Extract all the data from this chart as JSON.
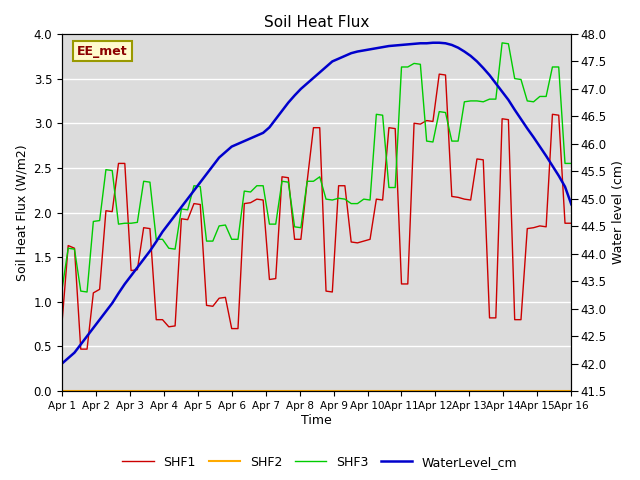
{
  "title": "Soil Heat Flux",
  "xlabel": "Time",
  "ylabel_left": "Soil Heat Flux (W/m2)",
  "ylabel_right": "Water level (cm)",
  "ylim_left": [
    0.0,
    4.0
  ],
  "ylim_right": [
    41.5,
    48.0
  ],
  "background_color": "#dcdcdc",
  "legend_label": "EE_met",
  "x_ticks": [
    "Apr 1",
    "Apr 2",
    "Apr 3",
    "Apr 4",
    "Apr 5",
    "Apr 6",
    "Apr 7",
    "Apr 8",
    "Apr 9",
    "Apr 10",
    "Apr 11",
    "Apr 12",
    "Apr 13",
    "Apr 14",
    "Apr 15",
    "Apr 16"
  ],
  "shf1_color": "#cc0000",
  "shf2_color": "#ffaa00",
  "shf3_color": "#00cc00",
  "water_color": "#0000cc",
  "shf1": [
    0.75,
    1.63,
    1.6,
    0.47,
    0.47,
    1.1,
    1.14,
    2.02,
    2.01,
    2.55,
    2.55,
    1.35,
    1.36,
    1.83,
    1.82,
    0.8,
    0.8,
    0.72,
    0.73,
    1.93,
    1.92,
    2.1,
    2.09,
    0.96,
    0.95,
    1.04,
    1.05,
    0.7,
    0.7,
    2.1,
    2.11,
    2.15,
    2.14,
    1.25,
    1.26,
    2.4,
    2.39,
    1.7,
    1.7,
    2.35,
    2.95,
    2.95,
    1.12,
    1.11,
    2.3,
    2.3,
    1.67,
    1.66,
    1.68,
    1.7,
    2.15,
    2.14,
    2.95,
    2.94,
    1.2,
    1.2,
    3.0,
    2.99,
    3.03,
    3.02,
    3.55,
    3.54,
    2.18,
    2.17,
    2.15,
    2.14,
    2.6,
    2.59,
    0.82,
    0.82,
    3.05,
    3.04,
    0.8,
    0.8,
    1.82,
    1.83,
    1.85,
    1.84,
    3.1,
    3.09,
    1.88,
    1.88
  ],
  "shf3": [
    1.13,
    1.6,
    1.59,
    1.12,
    1.11,
    1.9,
    1.91,
    2.48,
    2.47,
    1.87,
    1.88,
    1.88,
    1.89,
    2.35,
    2.34,
    1.7,
    1.7,
    1.6,
    1.59,
    2.04,
    2.03,
    2.3,
    2.29,
    1.68,
    1.68,
    1.85,
    1.86,
    1.7,
    1.7,
    2.24,
    2.23,
    2.3,
    2.3,
    1.87,
    1.87,
    2.35,
    2.34,
    1.84,
    1.83,
    2.35,
    2.35,
    2.4,
    2.15,
    2.14,
    2.16,
    2.15,
    2.1,
    2.1,
    2.15,
    2.14,
    3.1,
    3.09,
    2.28,
    2.28,
    3.63,
    3.63,
    3.67,
    3.66,
    2.8,
    2.79,
    3.13,
    3.12,
    2.8,
    2.8,
    3.24,
    3.25,
    3.25,
    3.24,
    3.27,
    3.27,
    3.9,
    3.89,
    3.5,
    3.49,
    3.25,
    3.24,
    3.3,
    3.3,
    3.63,
    3.63,
    2.55,
    2.55
  ],
  "shf2": [
    0.0,
    0.0,
    0.0,
    0.0,
    0.0,
    0.0,
    0.0,
    0.0,
    0.0,
    0.0,
    0.0,
    0.0,
    0.0,
    0.0,
    0.0,
    0.0,
    0.0,
    0.0,
    0.0,
    0.0,
    0.0,
    0.0,
    0.0,
    0.0,
    0.0,
    0.0,
    0.0,
    0.0,
    0.0,
    0.0,
    0.0,
    0.0,
    0.0,
    0.0,
    0.0,
    0.0,
    0.0,
    0.0,
    0.0,
    0.0,
    0.0,
    0.0,
    0.0,
    0.0,
    0.0,
    0.0,
    0.0,
    0.0,
    0.0,
    0.0,
    0.0,
    0.0,
    0.0,
    0.0,
    0.0,
    0.0,
    0.0,
    0.0,
    0.0,
    0.0,
    0.0,
    0.0,
    0.0,
    0.0,
    0.0,
    0.0,
    0.0,
    0.0,
    0.0,
    0.0,
    0.0,
    0.0,
    0.0,
    0.0,
    0.0,
    0.0,
    0.0,
    0.0,
    0.0,
    0.0,
    0.0,
    0.0
  ],
  "water_level": [
    42.0,
    42.1,
    42.2,
    42.35,
    42.5,
    42.65,
    42.8,
    42.95,
    43.1,
    43.28,
    43.45,
    43.6,
    43.75,
    43.9,
    44.05,
    44.22,
    44.4,
    44.55,
    44.7,
    44.85,
    45.0,
    45.15,
    45.3,
    45.45,
    45.6,
    45.75,
    45.85,
    45.95,
    46.0,
    46.05,
    46.1,
    46.15,
    46.2,
    46.3,
    46.45,
    46.6,
    46.75,
    46.88,
    47.0,
    47.1,
    47.2,
    47.3,
    47.4,
    47.5,
    47.55,
    47.6,
    47.65,
    47.68,
    47.7,
    47.72,
    47.74,
    47.76,
    47.78,
    47.79,
    47.8,
    47.81,
    47.82,
    47.83,
    47.83,
    47.84,
    47.84,
    47.83,
    47.8,
    47.75,
    47.68,
    47.6,
    47.5,
    47.38,
    47.25,
    47.1,
    46.95,
    46.8,
    46.62,
    46.45,
    46.28,
    46.12,
    45.95,
    45.78,
    45.6,
    45.42,
    45.22,
    44.9
  ]
}
